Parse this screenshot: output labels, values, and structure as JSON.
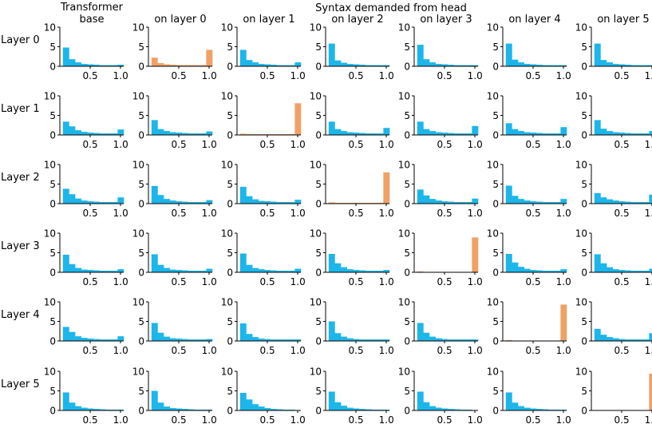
{
  "chart_data": {
    "type": "bar",
    "title": "Syntax demanded from head",
    "column_headers": [
      "Transformer\nbase",
      "on layer 0",
      "on layer 1",
      "on layer 2",
      "on layer 3",
      "on layer 4",
      "on layer 5"
    ],
    "row_labels": [
      "Layer 0",
      "Layer 1",
      "Layer 2",
      "Layer 3",
      "Layer 4",
      "Layer 5"
    ],
    "xlim": [
      0,
      1.05
    ],
    "ylim": [
      0,
      10
    ],
    "xticks": [
      0.5,
      1.0
    ],
    "xtick_labels": [
      "0.5",
      "1.0"
    ],
    "yticks": [
      0,
      5,
      10
    ],
    "ytick_labels": [
      "0",
      "5",
      "10"
    ],
    "bin_edges": [
      0.05,
      0.15,
      0.25,
      0.35,
      0.45,
      0.55,
      0.65,
      0.75,
      0.85,
      0.95,
      1.05
    ],
    "colors": {
      "base": "#1cb6ea",
      "demanded": "#f0a166"
    },
    "panels": [
      [
        {
          "color": "base",
          "values": [
            4.8,
            1.8,
            1.0,
            0.6,
            0.5,
            0.4,
            0.3,
            0.3,
            0.3,
            0.4
          ]
        },
        {
          "color": "demanded",
          "values": [
            2.2,
            0.8,
            0.5,
            0.4,
            0.3,
            0.3,
            0.3,
            0.3,
            0.3,
            4.2
          ]
        },
        {
          "color": "base",
          "values": [
            4.2,
            1.6,
            1.0,
            0.6,
            0.5,
            0.4,
            0.3,
            0.3,
            0.3,
            1.0
          ]
        },
        {
          "color": "base",
          "values": [
            5.8,
            1.5,
            0.9,
            0.6,
            0.5,
            0.4,
            0.3,
            0.3,
            0.3,
            0.3
          ]
        },
        {
          "color": "base",
          "values": [
            5.5,
            1.8,
            1.0,
            0.6,
            0.5,
            0.4,
            0.3,
            0.3,
            0.3,
            0.3
          ]
        },
        {
          "color": "base",
          "values": [
            5.8,
            1.7,
            1.0,
            0.6,
            0.5,
            0.4,
            0.3,
            0.3,
            0.3,
            0.3
          ]
        },
        {
          "color": "base",
          "values": [
            5.8,
            1.6,
            1.0,
            0.6,
            0.5,
            0.4,
            0.3,
            0.3,
            0.3,
            0.3
          ]
        }
      ],
      [
        {
          "color": "base",
          "values": [
            3.4,
            2.2,
            1.2,
            0.8,
            0.6,
            0.5,
            0.4,
            0.4,
            0.4,
            1.4
          ]
        },
        {
          "color": "base",
          "values": [
            3.8,
            1.5,
            1.0,
            0.7,
            0.6,
            0.5,
            0.4,
            0.4,
            0.4,
            0.9
          ]
        },
        {
          "color": "demanded",
          "values": [
            0.3,
            0.2,
            0.2,
            0.2,
            0.2,
            0.2,
            0.2,
            0.2,
            0.2,
            8.1
          ]
        },
        {
          "color": "base",
          "values": [
            3.4,
            1.5,
            1.0,
            0.7,
            0.6,
            0.5,
            0.4,
            0.4,
            0.4,
            1.8
          ]
        },
        {
          "color": "base",
          "values": [
            3.4,
            1.5,
            1.0,
            0.7,
            0.6,
            0.5,
            0.4,
            0.4,
            0.4,
            2.3
          ]
        },
        {
          "color": "base",
          "values": [
            3.0,
            1.5,
            1.0,
            0.7,
            0.6,
            0.5,
            0.4,
            0.4,
            0.4,
            2.0
          ]
        },
        {
          "color": "base",
          "values": [
            3.8,
            1.6,
            1.0,
            0.7,
            0.6,
            0.5,
            0.4,
            0.4,
            0.4,
            1.0
          ]
        }
      ],
      [
        {
          "color": "base",
          "values": [
            3.8,
            2.4,
            1.3,
            0.8,
            0.6,
            0.5,
            0.4,
            0.4,
            0.4,
            1.6
          ]
        },
        {
          "color": "base",
          "values": [
            4.5,
            2.2,
            1.2,
            0.8,
            0.6,
            0.5,
            0.4,
            0.4,
            0.4,
            0.9
          ]
        },
        {
          "color": "base",
          "values": [
            4.3,
            1.9,
            1.1,
            0.7,
            0.6,
            0.5,
            0.4,
            0.4,
            0.4,
            1.0
          ]
        },
        {
          "color": "demanded",
          "values": [
            0.3,
            0.2,
            0.2,
            0.2,
            0.2,
            0.2,
            0.2,
            0.2,
            0.2,
            8.0
          ]
        },
        {
          "color": "base",
          "values": [
            3.6,
            2.1,
            1.2,
            0.8,
            0.6,
            0.5,
            0.4,
            0.4,
            0.4,
            1.3
          ]
        },
        {
          "color": "base",
          "values": [
            4.6,
            2.0,
            1.2,
            0.8,
            0.6,
            0.5,
            0.4,
            0.4,
            0.4,
            1.2
          ]
        },
        {
          "color": "base",
          "values": [
            2.7,
            1.6,
            1.1,
            0.8,
            0.6,
            0.5,
            0.4,
            0.4,
            0.4,
            2.3
          ]
        }
      ],
      [
        {
          "color": "base",
          "values": [
            4.5,
            2.1,
            1.1,
            0.7,
            0.6,
            0.5,
            0.4,
            0.4,
            0.4,
            0.8
          ]
        },
        {
          "color": "base",
          "values": [
            4.6,
            1.9,
            1.1,
            0.7,
            0.6,
            0.5,
            0.4,
            0.4,
            0.4,
            0.9
          ]
        },
        {
          "color": "base",
          "values": [
            4.8,
            1.9,
            1.1,
            0.8,
            0.6,
            0.5,
            0.4,
            0.4,
            0.4,
            0.9
          ]
        },
        {
          "color": "base",
          "values": [
            4.7,
            2.3,
            1.3,
            0.8,
            0.6,
            0.5,
            0.4,
            0.4,
            0.4,
            0.6
          ]
        },
        {
          "color": "demanded",
          "values": [
            0.2,
            0.1,
            0.1,
            0.1,
            0.1,
            0.1,
            0.1,
            0.1,
            0.1,
            8.9
          ]
        },
        {
          "color": "base",
          "values": [
            4.7,
            2.5,
            1.4,
            0.9,
            0.6,
            0.5,
            0.4,
            0.4,
            0.4,
            0.8
          ]
        },
        {
          "color": "base",
          "values": [
            4.6,
            2.3,
            1.3,
            0.8,
            0.6,
            0.5,
            0.4,
            0.4,
            0.4,
            0.9
          ]
        }
      ],
      [
        {
          "color": "base",
          "values": [
            3.6,
            2.3,
            1.2,
            0.8,
            0.6,
            0.5,
            0.4,
            0.4,
            0.4,
            1.2
          ]
        },
        {
          "color": "base",
          "values": [
            4.6,
            2.1,
            1.1,
            0.7,
            0.6,
            0.5,
            0.4,
            0.4,
            0.4,
            0.5
          ]
        },
        {
          "color": "base",
          "values": [
            4.5,
            1.8,
            1.0,
            0.6,
            0.5,
            0.4,
            0.4,
            0.4,
            0.4,
            0.4
          ]
        },
        {
          "color": "base",
          "values": [
            5.0,
            2.0,
            1.1,
            0.7,
            0.5,
            0.4,
            0.4,
            0.4,
            0.4,
            0.4
          ]
        },
        {
          "color": "base",
          "values": [
            4.6,
            2.1,
            1.1,
            0.7,
            0.5,
            0.4,
            0.4,
            0.4,
            0.4,
            0.4
          ]
        },
        {
          "color": "demanded",
          "values": [
            0.2,
            0.1,
            0.1,
            0.1,
            0.1,
            0.1,
            0.1,
            0.1,
            0.1,
            9.3
          ]
        },
        {
          "color": "base",
          "values": [
            3.1,
            1.6,
            1.0,
            0.7,
            0.5,
            0.4,
            0.4,
            0.4,
            0.4,
            2.0
          ]
        }
      ],
      [
        {
          "color": "base",
          "values": [
            4.6,
            2.0,
            1.1,
            0.7,
            0.5,
            0.4,
            0.3,
            0.2,
            0.2,
            0.2
          ]
        },
        {
          "color": "base",
          "values": [
            5.0,
            2.0,
            1.0,
            0.6,
            0.5,
            0.4,
            0.3,
            0.2,
            0.2,
            0.2
          ]
        },
        {
          "color": "base",
          "values": [
            4.5,
            2.8,
            1.6,
            1.0,
            0.6,
            0.4,
            0.3,
            0.2,
            0.2,
            0.1
          ]
        },
        {
          "color": "base",
          "values": [
            4.8,
            2.1,
            1.2,
            0.7,
            0.5,
            0.4,
            0.3,
            0.2,
            0.2,
            0.2
          ]
        },
        {
          "color": "base",
          "values": [
            4.8,
            2.1,
            1.1,
            0.7,
            0.5,
            0.4,
            0.3,
            0.2,
            0.2,
            0.1
          ]
        },
        {
          "color": "base",
          "values": [
            4.6,
            2.0,
            1.1,
            0.7,
            0.5,
            0.4,
            0.3,
            0.2,
            0.2,
            0.2
          ]
        },
        {
          "color": "demanded",
          "values": [
            0.0,
            0.0,
            0.0,
            0.0,
            0.0,
            0.0,
            0.0,
            0.0,
            0.0,
            9.4
          ]
        }
      ]
    ]
  }
}
